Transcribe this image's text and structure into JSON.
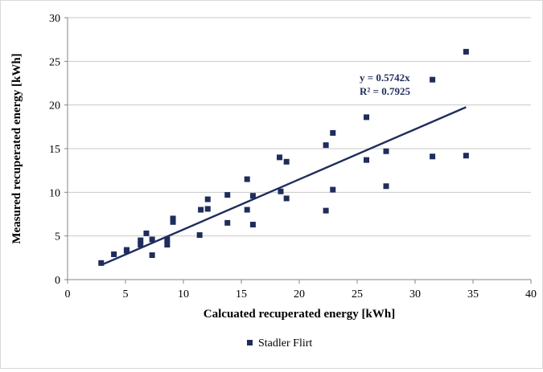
{
  "chart_data": {
    "type": "scatter",
    "title": "",
    "xlabel": "Calcuated recuperated energy [kWh]",
    "ylabel": "Measured recuperated energy [kWh]",
    "xlim": [
      0,
      40
    ],
    "ylim": [
      0,
      30
    ],
    "x_ticks": [
      "0",
      "5",
      "10",
      "15",
      "20",
      "25",
      "30",
      "35",
      "40"
    ],
    "y_ticks": [
      "0",
      "5",
      "10",
      "15",
      "20",
      "25",
      "30"
    ],
    "grid": "horizontal",
    "legend_position": "bottom",
    "colors": {
      "series": "#1f2d5c",
      "grid": "#c8c8c8",
      "axis": "#868686"
    },
    "series": [
      {
        "name": "Stadler Flirt",
        "marker": "square",
        "points": [
          [
            2.9,
            1.9
          ],
          [
            4.0,
            2.9
          ],
          [
            5.1,
            3.3
          ],
          [
            5.1,
            3.4
          ],
          [
            6.3,
            4.0
          ],
          [
            6.3,
            4.5
          ],
          [
            6.8,
            5.3
          ],
          [
            7.3,
            4.6
          ],
          [
            7.3,
            2.8
          ],
          [
            8.6,
            4.6
          ],
          [
            8.6,
            4.0
          ],
          [
            9.1,
            7.0
          ],
          [
            9.1,
            6.6
          ],
          [
            11.4,
            5.1
          ],
          [
            11.5,
            8.0
          ],
          [
            12.1,
            8.1
          ],
          [
            12.1,
            9.2
          ],
          [
            13.8,
            6.5
          ],
          [
            13.8,
            9.7
          ],
          [
            15.5,
            11.5
          ],
          [
            15.5,
            8.0
          ],
          [
            16.0,
            9.6
          ],
          [
            16.0,
            6.3
          ],
          [
            18.3,
            14.0
          ],
          [
            18.4,
            10.1
          ],
          [
            18.9,
            13.5
          ],
          [
            18.9,
            9.3
          ],
          [
            22.3,
            15.4
          ],
          [
            22.3,
            7.9
          ],
          [
            22.9,
            16.8
          ],
          [
            22.9,
            10.3
          ],
          [
            25.8,
            18.6
          ],
          [
            25.8,
            13.7
          ],
          [
            27.5,
            14.7
          ],
          [
            27.5,
            10.7
          ],
          [
            31.5,
            22.9
          ],
          [
            31.5,
            14.1
          ],
          [
            34.4,
            26.1
          ],
          [
            34.4,
            14.2
          ]
        ]
      }
    ],
    "trendline": {
      "type": "linear-through-origin",
      "slope": 0.5742,
      "x_range": [
        2.9,
        34.4
      ],
      "equation": "y = 0.5742x",
      "r_squared": "R² = 0.7925"
    }
  }
}
